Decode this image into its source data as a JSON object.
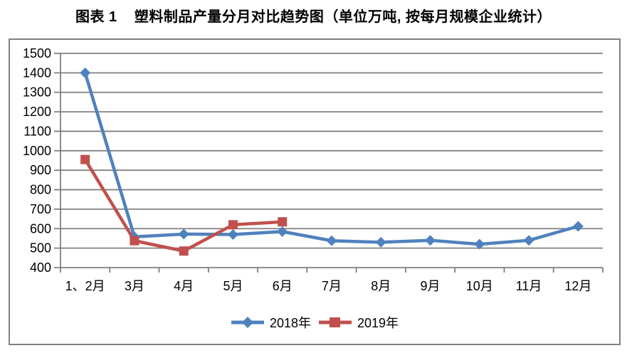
{
  "chart_data": {
    "type": "line",
    "title": "图表 1    塑料制品产量分月对比趋势图（单位万吨, 按每月规模企业统计）",
    "xlabel": "",
    "ylabel": "",
    "categories": [
      "1、2月",
      "3月",
      "4月",
      "5月",
      "6月",
      "7月",
      "8月",
      "9月",
      "10月",
      "11月",
      "12月"
    ],
    "series": [
      {
        "name": "2018年",
        "color": "#4F81BD",
        "marker": "diamond",
        "values": [
          1400,
          558,
          572,
          570,
          585,
          538,
          530,
          540,
          520,
          540,
          612
        ]
      },
      {
        "name": "2019年",
        "color": "#C0504D",
        "marker": "square",
        "values": [
          955,
          538,
          485,
          620,
          635,
          null,
          null,
          null,
          null,
          null,
          null
        ]
      }
    ],
    "ylim": [
      400,
      1500
    ],
    "ytick_step": 100,
    "grid": "horizontal",
    "legend_position": "bottom",
    "colors": {
      "gridline": "#808080",
      "axis": "#808080",
      "frame_border": "#808080",
      "tick_text": "#000000",
      "background": "#ffffff"
    }
  }
}
